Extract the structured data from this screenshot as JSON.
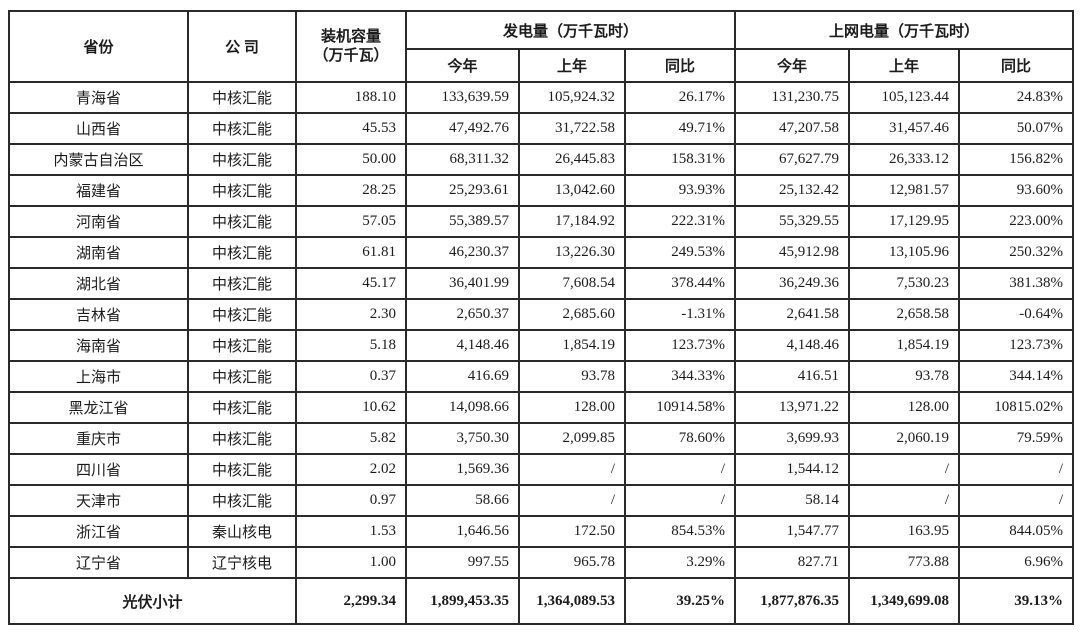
{
  "table": {
    "headers": {
      "province": "省份",
      "company": "公 司",
      "capacity_line1": "装机容量",
      "capacity_line2": "（万千瓦）",
      "generation_group": "发电量（万千瓦时）",
      "ongrid_group": "上网电量（万千瓦时）",
      "this_year": "今年",
      "last_year": "上年",
      "yoy": "同比"
    },
    "rows": [
      {
        "province": "青海省",
        "company": "中核汇能",
        "capacity": "188.10",
        "gen_this": "133,639.59",
        "gen_last": "105,924.32",
        "gen_yoy": "26.17%",
        "grid_this": "131,230.75",
        "grid_last": "105,123.44",
        "grid_yoy": "24.83%"
      },
      {
        "province": "山西省",
        "company": "中核汇能",
        "capacity": "45.53",
        "gen_this": "47,492.76",
        "gen_last": "31,722.58",
        "gen_yoy": "49.71%",
        "grid_this": "47,207.58",
        "grid_last": "31,457.46",
        "grid_yoy": "50.07%"
      },
      {
        "province": "内蒙古自治区",
        "company": "中核汇能",
        "capacity": "50.00",
        "gen_this": "68,311.32",
        "gen_last": "26,445.83",
        "gen_yoy": "158.31%",
        "grid_this": "67,627.79",
        "grid_last": "26,333.12",
        "grid_yoy": "156.82%"
      },
      {
        "province": "福建省",
        "company": "中核汇能",
        "capacity": "28.25",
        "gen_this": "25,293.61",
        "gen_last": "13,042.60",
        "gen_yoy": "93.93%",
        "grid_this": "25,132.42",
        "grid_last": "12,981.57",
        "grid_yoy": "93.60%"
      },
      {
        "province": "河南省",
        "company": "中核汇能",
        "capacity": "57.05",
        "gen_this": "55,389.57",
        "gen_last": "17,184.92",
        "gen_yoy": "222.31%",
        "grid_this": "55,329.55",
        "grid_last": "17,129.95",
        "grid_yoy": "223.00%"
      },
      {
        "province": "湖南省",
        "company": "中核汇能",
        "capacity": "61.81",
        "gen_this": "46,230.37",
        "gen_last": "13,226.30",
        "gen_yoy": "249.53%",
        "grid_this": "45,912.98",
        "grid_last": "13,105.96",
        "grid_yoy": "250.32%"
      },
      {
        "province": "湖北省",
        "company": "中核汇能",
        "capacity": "45.17",
        "gen_this": "36,401.99",
        "gen_last": "7,608.54",
        "gen_yoy": "378.44%",
        "grid_this": "36,249.36",
        "grid_last": "7,530.23",
        "grid_yoy": "381.38%"
      },
      {
        "province": "吉林省",
        "company": "中核汇能",
        "capacity": "2.30",
        "gen_this": "2,650.37",
        "gen_last": "2,685.60",
        "gen_yoy": "-1.31%",
        "grid_this": "2,641.58",
        "grid_last": "2,658.58",
        "grid_yoy": "-0.64%"
      },
      {
        "province": "海南省",
        "company": "中核汇能",
        "capacity": "5.18",
        "gen_this": "4,148.46",
        "gen_last": "1,854.19",
        "gen_yoy": "123.73%",
        "grid_this": "4,148.46",
        "grid_last": "1,854.19",
        "grid_yoy": "123.73%"
      },
      {
        "province": "上海市",
        "company": "中核汇能",
        "capacity": "0.37",
        "gen_this": "416.69",
        "gen_last": "93.78",
        "gen_yoy": "344.33%",
        "grid_this": "416.51",
        "grid_last": "93.78",
        "grid_yoy": "344.14%"
      },
      {
        "province": "黑龙江省",
        "company": "中核汇能",
        "capacity": "10.62",
        "gen_this": "14,098.66",
        "gen_last": "128.00",
        "gen_yoy": "10914.58%",
        "grid_this": "13,971.22",
        "grid_last": "128.00",
        "grid_yoy": "10815.02%"
      },
      {
        "province": "重庆市",
        "company": "中核汇能",
        "capacity": "5.82",
        "gen_this": "3,750.30",
        "gen_last": "2,099.85",
        "gen_yoy": "78.60%",
        "grid_this": "3,699.93",
        "grid_last": "2,060.19",
        "grid_yoy": "79.59%"
      },
      {
        "province": "四川省",
        "company": "中核汇能",
        "capacity": "2.02",
        "gen_this": "1,569.36",
        "gen_last": "/",
        "gen_yoy": "/",
        "grid_this": "1,544.12",
        "grid_last": "/",
        "grid_yoy": "/"
      },
      {
        "province": "天津市",
        "company": "中核汇能",
        "capacity": "0.97",
        "gen_this": "58.66",
        "gen_last": "/",
        "gen_yoy": "/",
        "grid_this": "58.14",
        "grid_last": "/",
        "grid_yoy": "/"
      },
      {
        "province": "浙江省",
        "company": "秦山核电",
        "capacity": "1.53",
        "gen_this": "1,646.56",
        "gen_last": "172.50",
        "gen_yoy": "854.53%",
        "grid_this": "1,547.77",
        "grid_last": "163.95",
        "grid_yoy": "844.05%"
      },
      {
        "province": "辽宁省",
        "company": "辽宁核电",
        "capacity": "1.00",
        "gen_this": "997.55",
        "gen_last": "965.78",
        "gen_yoy": "3.29%",
        "grid_this": "827.71",
        "grid_last": "773.88",
        "grid_yoy": "6.96%"
      }
    ],
    "subtotal": {
      "label": "光伏小计",
      "capacity": "2,299.34",
      "gen_this": "1,899,453.35",
      "gen_last": "1,364,089.53",
      "gen_yoy": "39.25%",
      "grid_this": "1,877,876.35",
      "grid_last": "1,349,699.08",
      "grid_yoy": "39.13%"
    }
  }
}
